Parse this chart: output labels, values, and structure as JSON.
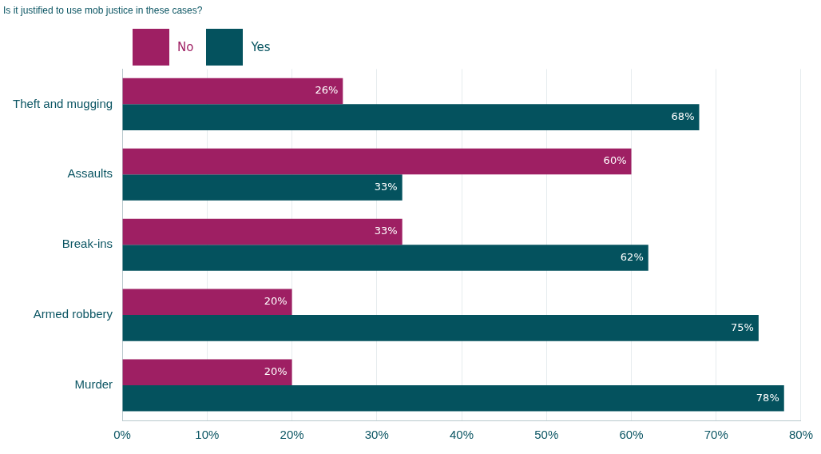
{
  "chart_data": {
    "type": "bar",
    "orientation": "horizontal",
    "title": "Is it justified to use mob justice in these cases?",
    "categories": [
      "Theft and mugging",
      "Assaults",
      "Break-ins",
      "Armed robbery",
      "Murder"
    ],
    "series": [
      {
        "name": "No",
        "color": "#9e1f63",
        "values": [
          26,
          60,
          33,
          20,
          20
        ],
        "value_labels": [
          "26%",
          "60%",
          "33%",
          "20%",
          "20%"
        ]
      },
      {
        "name": "Yes",
        "color": "#04525e",
        "values": [
          68,
          33,
          62,
          75,
          78
        ],
        "value_labels": [
          "68%",
          "33%",
          "62%",
          "75%",
          "78%"
        ]
      }
    ],
    "xlim": [
      0,
      80
    ],
    "xticks": [
      {
        "value": 0,
        "label": "0%"
      },
      {
        "value": 10,
        "label": "10%"
      },
      {
        "value": 20,
        "label": "20%"
      },
      {
        "value": 30,
        "label": "30%"
      },
      {
        "value": 40,
        "label": "40%"
      },
      {
        "value": 50,
        "label": "50%"
      },
      {
        "value": 60,
        "label": "60%"
      },
      {
        "value": 70,
        "label": "70%"
      },
      {
        "value": 80,
        "label": "80%"
      }
    ],
    "grid": "x",
    "legend": "top left"
  }
}
